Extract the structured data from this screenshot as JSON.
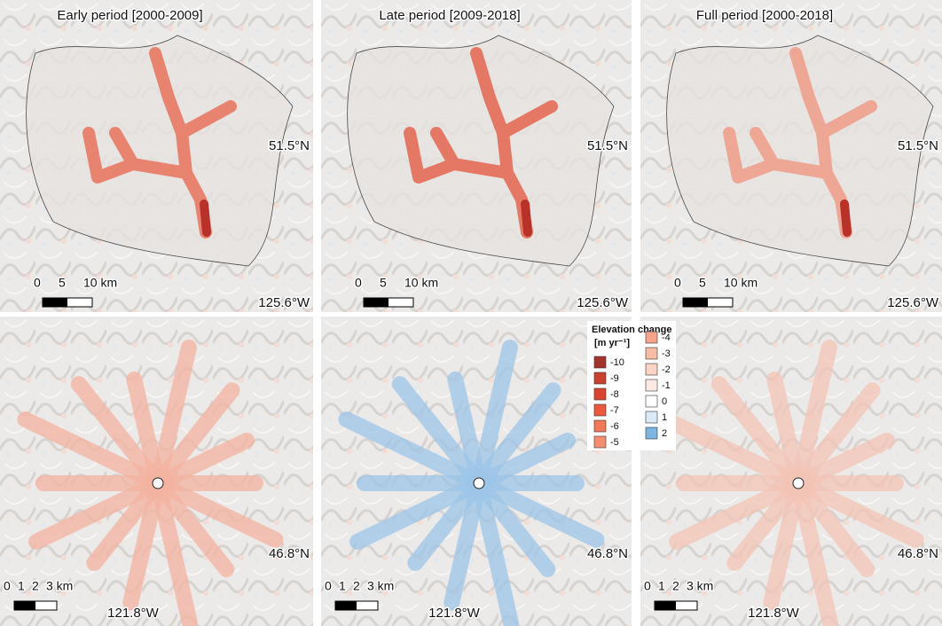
{
  "panels": [
    {
      "title": "Early period [2000-2009]",
      "latitude": "51.5°N",
      "longitude": "125.6°W",
      "scale": [
        "0",
        "5",
        "10 km"
      ]
    },
    {
      "title": "Late period [2009-2018]",
      "latitude": "51.5°N",
      "longitude": "125.6°W",
      "scale": [
        "0",
        "5",
        "10 km"
      ]
    },
    {
      "title": "Full period [2000-2018]",
      "latitude": "51.5°N",
      "longitude": "125.6°W",
      "scale": [
        "0",
        "5",
        "10 km"
      ]
    },
    {
      "latitude": "46.8°N",
      "longitude": "121.8°W",
      "scale": [
        "0",
        "1",
        "2",
        "3 km"
      ]
    },
    {
      "latitude": "46.8°N",
      "longitude": "121.8°W",
      "scale": [
        "0",
        "1",
        "2",
        "3 km"
      ]
    },
    {
      "latitude": "46.8°N",
      "longitude": "121.8°W",
      "scale": [
        "0",
        "1",
        "2",
        "3 km"
      ]
    }
  ],
  "legend": {
    "title": "Elevation change",
    "unit": "[m yr⁻¹]",
    "items": [
      {
        "value": -10,
        "color": "#a3342d"
      },
      {
        "value": -9,
        "color": "#c8412e"
      },
      {
        "value": -8,
        "color": "#d9442f"
      },
      {
        "value": -7,
        "color": "#ea5a3a"
      },
      {
        "value": -6,
        "color": "#f07a57"
      },
      {
        "value": -5,
        "color": "#f38f70"
      },
      {
        "value": -4,
        "color": "#f5a58a"
      },
      {
        "value": -3,
        "color": "#f7bca6"
      },
      {
        "value": -2,
        "color": "#fad3c4"
      },
      {
        "value": -1,
        "color": "#fde9e1"
      },
      {
        "value": 0,
        "color": "#ffffff"
      },
      {
        "value": 1,
        "color": "#d9e9f6"
      },
      {
        "value": 2,
        "color": "#7db5e0"
      }
    ]
  }
}
